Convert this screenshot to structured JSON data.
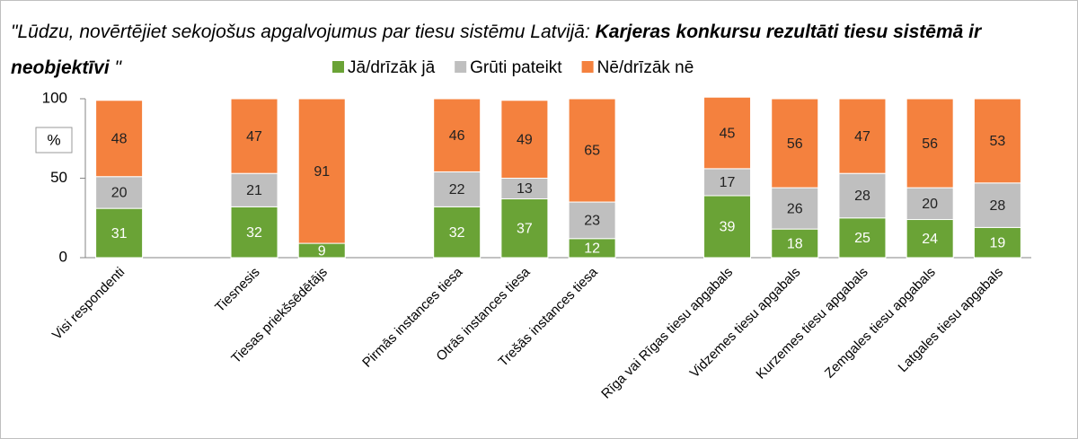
{
  "chart_data": {
    "type": "bar",
    "stacked": true,
    "title": [
      "\"Lūdzu, novērtējiet sekojošus apgalvojumus par tiesu sistēmu Latvijā: ",
      "Karjeras konkursu rezultāti tiesu sistēmā ir neobjektīvi",
      " \""
    ],
    "unit_label": "%",
    "categories": [
      "Visi respondenti",
      null,
      "Tiesnesis",
      "Tiesas priekšsēdētājs",
      null,
      "Pirmās instances tiesa",
      "Otrās instances tiesa",
      "Trešās instances tiesa",
      null,
      "Rīga vai Rīgas tiesu apgabals",
      "Vidzemes tiesu apgabals",
      "Kurzemes tiesu apgabals",
      "Zemgales tiesu apgabals",
      "Latgales tiesu apgabals"
    ],
    "series": [
      {
        "name": "Jā/drīzāk jā",
        "color": "#6aa336",
        "values": [
          31,
          null,
          32,
          9,
          null,
          32,
          37,
          12,
          null,
          39,
          18,
          25,
          24,
          19
        ]
      },
      {
        "name": "Grūti pateikt",
        "color": "#bfbfbf",
        "values": [
          20,
          null,
          21,
          null,
          null,
          22,
          13,
          23,
          null,
          17,
          26,
          28,
          20,
          28
        ]
      },
      {
        "name": "Nē/drīzāk nē",
        "color": "#f4813e",
        "values": [
          48,
          null,
          47,
          91,
          null,
          46,
          49,
          65,
          null,
          45,
          56,
          47,
          56,
          53
        ]
      }
    ],
    "ylim": [
      0,
      100
    ],
    "yticks": [
      0,
      50,
      100
    ],
    "grid": false
  }
}
